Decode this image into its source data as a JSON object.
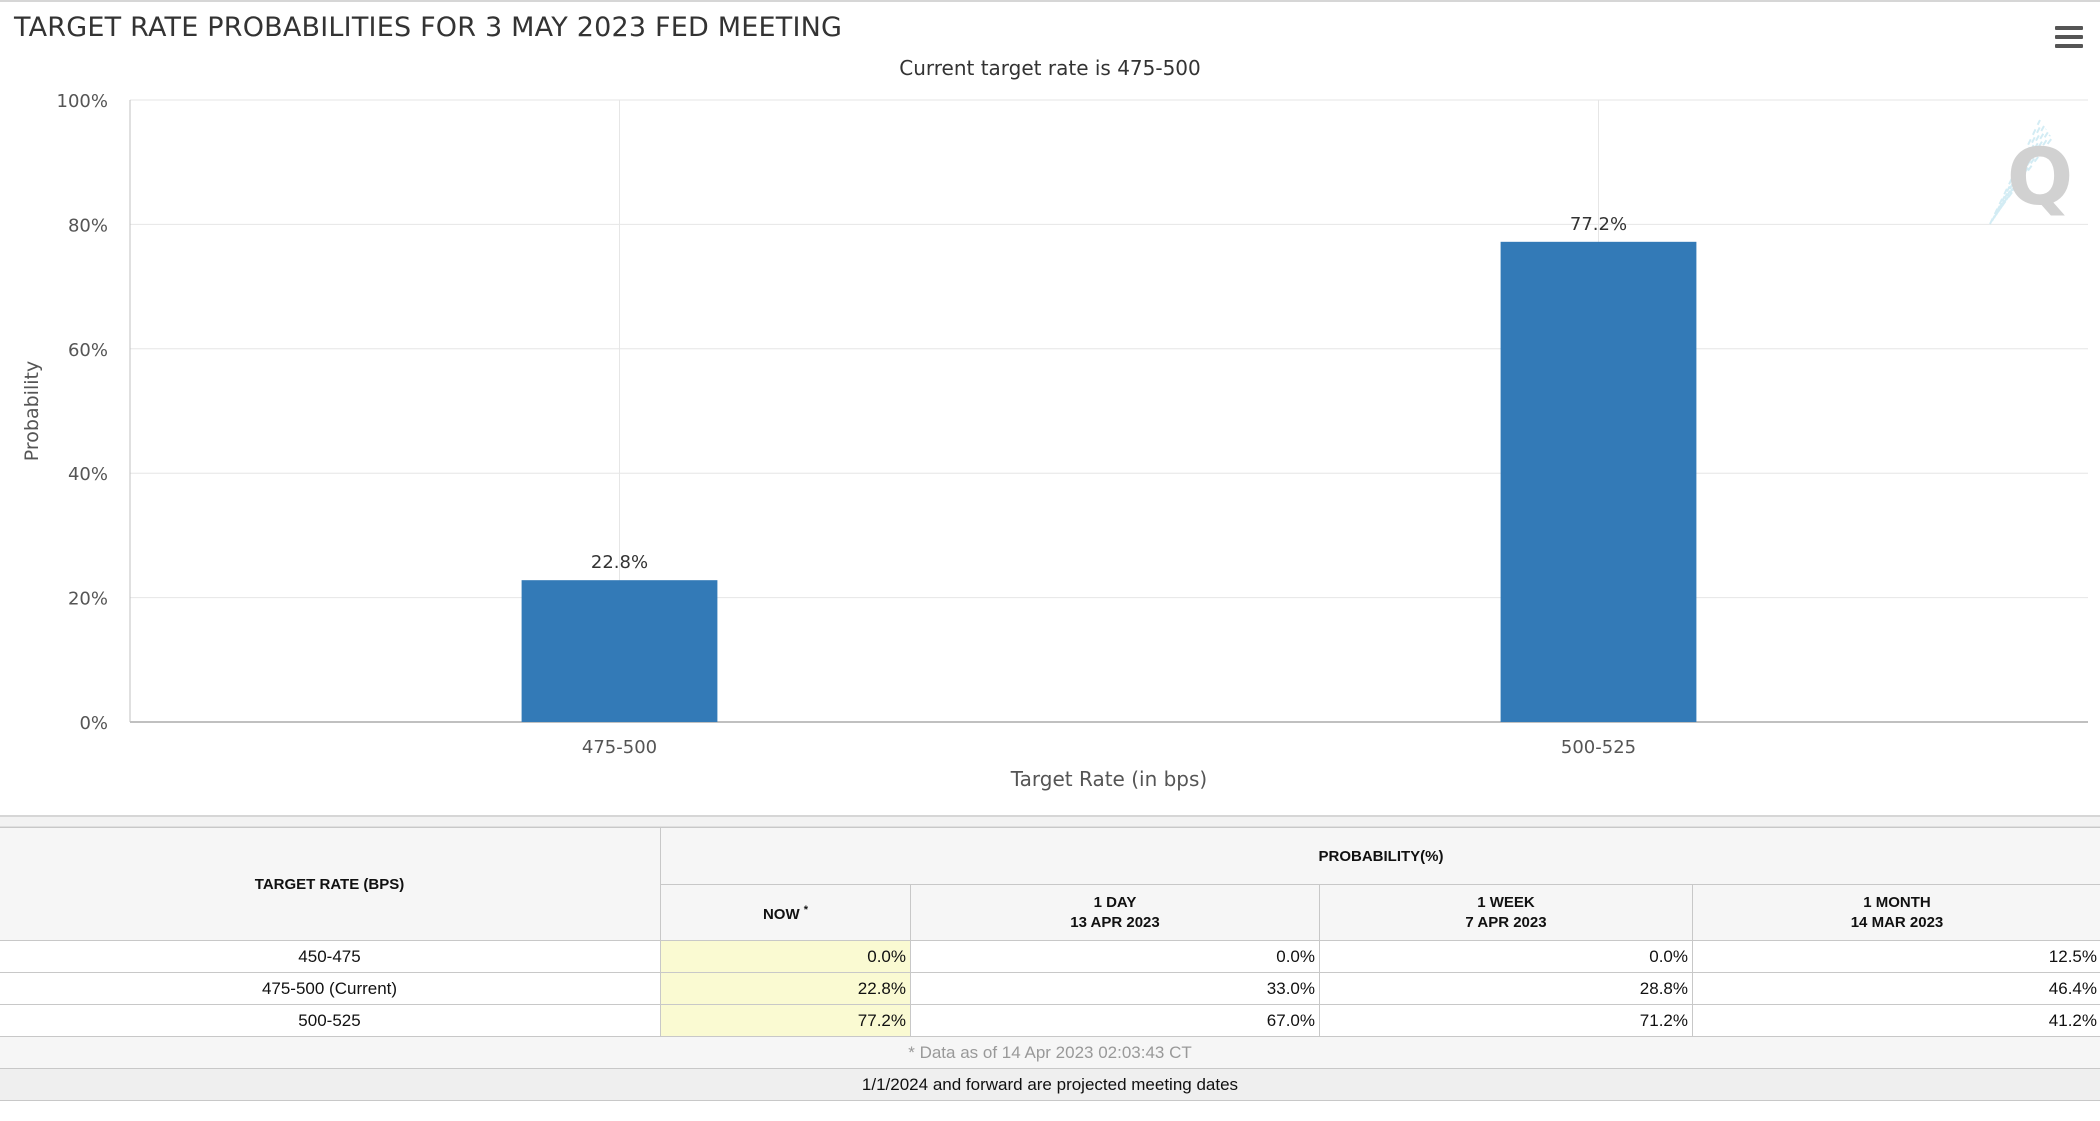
{
  "chart_title": "TARGET RATE PROBABILITIES FOR 3 MAY 2023 FED MEETING",
  "chart_subtitle": "Current target rate is 475-500",
  "menu_icon": "hamburger-menu-icon",
  "watermark_icon": "cme-fedwatch-q-logo",
  "colors": {
    "bar": "#337ab7",
    "now_highlight": "#fafad2",
    "grid": "#e6e6e6"
  },
  "chart_data": {
    "type": "bar",
    "categories": [
      "475-500",
      "500-525"
    ],
    "values": [
      22.8,
      77.2
    ],
    "data_labels": [
      "22.8%",
      "77.2%"
    ],
    "xlabel": "Target Rate (in bps)",
    "ylabel": "Probability",
    "ylim": [
      0,
      100
    ],
    "yticks": [
      "0%",
      "20%",
      "40%",
      "60%",
      "80%",
      "100%"
    ],
    "grid": true,
    "legend": "none"
  },
  "table": {
    "rate_header": "TARGET RATE (BPS)",
    "prob_header": "PROBABILITY(%)",
    "now_header": "NOW",
    "now_marker": "*",
    "columns": [
      {
        "period": "1 DAY",
        "date": "13 APR 2023"
      },
      {
        "period": "1 WEEK",
        "date": "7 APR 2023"
      },
      {
        "period": "1 MONTH",
        "date": "14 MAR 2023"
      }
    ],
    "rows": [
      {
        "rate": "450-475",
        "now": "0.0%",
        "d1": "0.0%",
        "w1": "0.0%",
        "m1": "12.5%"
      },
      {
        "rate": "475-500 (Current)",
        "now": "22.8%",
        "d1": "33.0%",
        "w1": "28.8%",
        "m1": "46.4%"
      },
      {
        "rate": "500-525",
        "now": "77.2%",
        "d1": "67.0%",
        "w1": "71.2%",
        "m1": "41.2%"
      }
    ],
    "data_note": "* Data as of 14 Apr 2023 02:03:43 CT",
    "footer_note": "1/1/2024 and forward are projected meeting dates"
  }
}
